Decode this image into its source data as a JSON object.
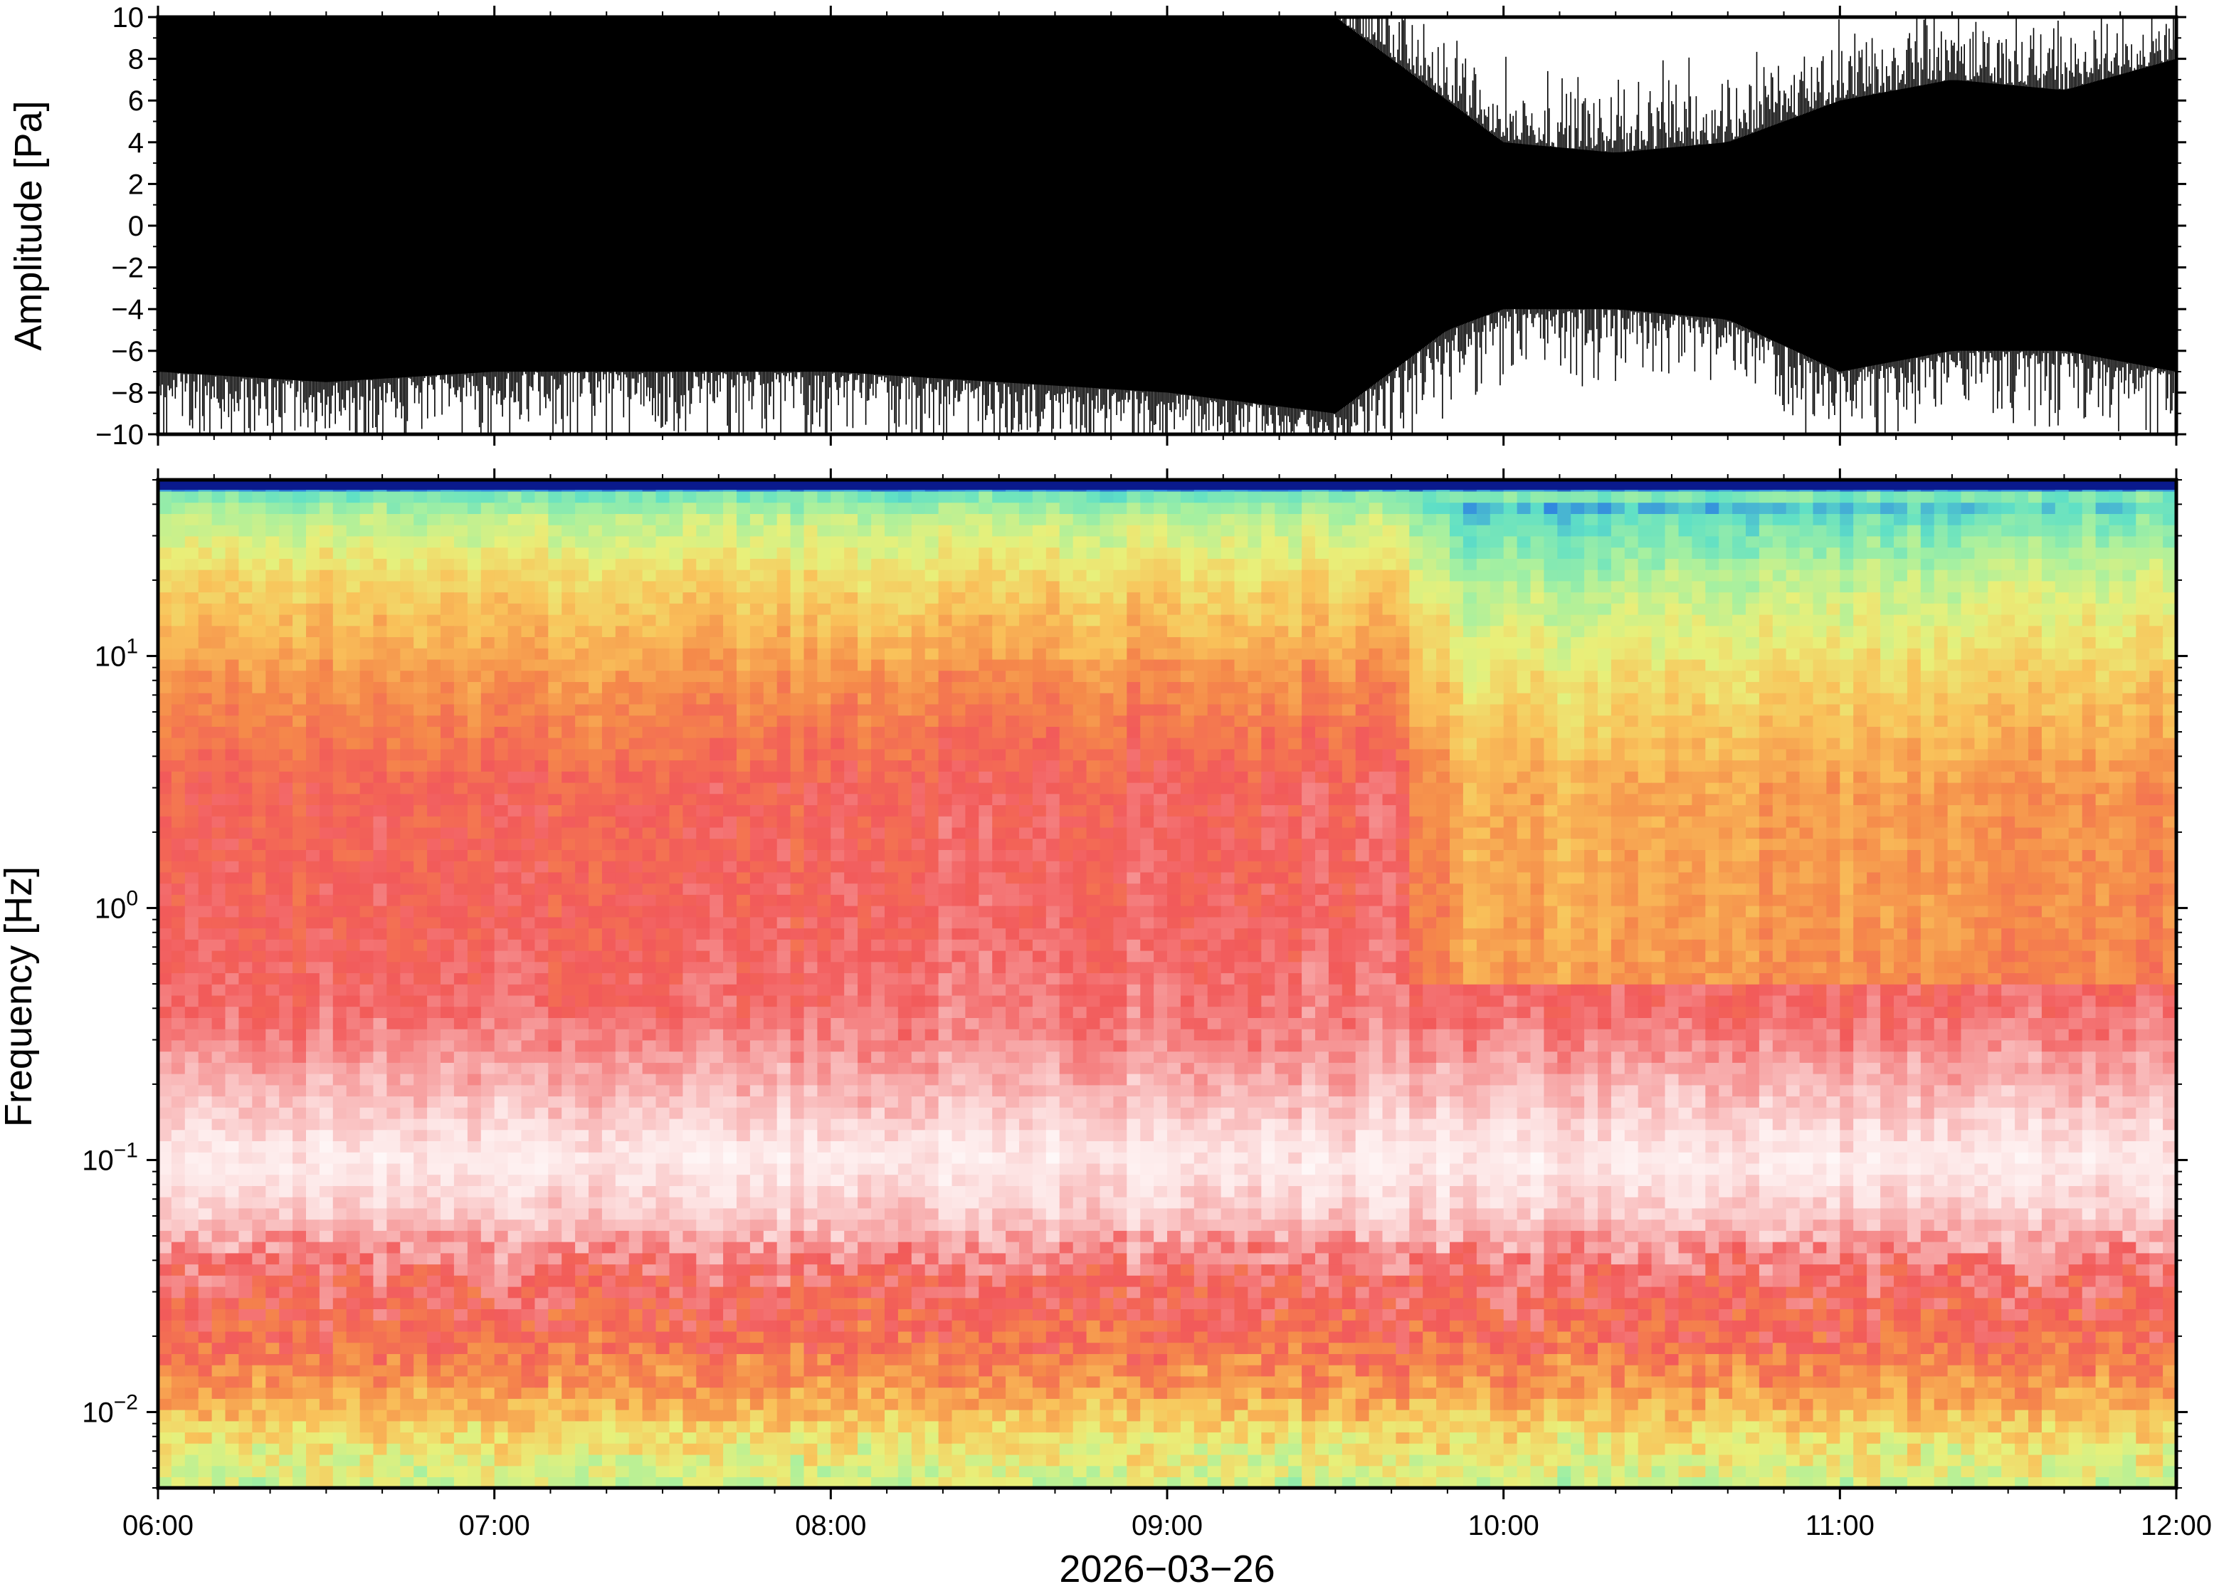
{
  "chart_data": [
    {
      "type": "line",
      "panel": "waveform",
      "ylabel": "Amplitude [Pa]",
      "ylim": [
        -10,
        10
      ],
      "yticks": [
        10,
        8,
        6,
        4,
        2,
        0,
        -2,
        -4,
        -6,
        -8,
        -10
      ],
      "ytick_labels": [
        "10",
        "8",
        "6",
        "4",
        "2",
        "0",
        "−2",
        "−4",
        "−6",
        "−8",
        "−10"
      ],
      "xlim": [
        "06:00",
        "12:00"
      ],
      "series": [
        {
          "color": "#000000",
          "x": [
            "06:00",
            "06:30",
            "07:00",
            "07:30",
            "08:00",
            "08:30",
            "09:00",
            "09:30",
            "09:40",
            "09:50",
            "10:00",
            "10:20",
            "10:40",
            "11:00",
            "11:20",
            "11:40",
            "12:00"
          ],
          "upper_envelope": [
            10,
            10,
            10,
            10,
            10,
            10,
            10,
            10,
            8,
            6,
            4,
            3.5,
            4,
            6,
            7,
            6.5,
            8
          ],
          "lower_envelope": [
            -7,
            -7.5,
            -7,
            -7,
            -7,
            -7.5,
            -8,
            -9,
            -7,
            -5,
            -4,
            -4,
            -4.5,
            -7,
            -6,
            -6,
            -7
          ]
        }
      ]
    },
    {
      "type": "heatmap",
      "panel": "spectrogram",
      "ylabel": "Frequency [Hz]",
      "xlabel": "2026−03−26",
      "yscale": "log",
      "ylim": [
        0.005,
        50
      ],
      "yticks": [
        10,
        1,
        0.1,
        0.01
      ],
      "ytick_bases": [
        "10",
        "10",
        "10",
        "10"
      ],
      "ytick_exponents": [
        "1",
        "0",
        "−1",
        "−2"
      ],
      "xticks": [
        "06:00",
        "07:00",
        "08:00",
        "09:00",
        "10:00",
        "11:00",
        "12:00"
      ],
      "colormap": [
        "#0a1a8c",
        "#2f86e0",
        "#5fe0c6",
        "#a6f0a0",
        "#e8f07a",
        "#f9c25a",
        "#f58a4a",
        "#f25a5a",
        "#f7a6a6",
        "#fde6e6",
        "#ffffff"
      ],
      "bands": [
        {
          "freq_range": [
            35,
            50
          ],
          "level": "blue/cyan (low)"
        },
        {
          "freq_range": [
            10,
            35
          ],
          "level": "yellow-green"
        },
        {
          "freq_range": [
            0.3,
            10
          ],
          "level": "red (high)"
        },
        {
          "freq_range": [
            0.05,
            0.3
          ],
          "level": "pink/white (highest)"
        },
        {
          "freq_range": [
            0.015,
            0.05
          ],
          "level": "red"
        },
        {
          "freq_range": [
            0.005,
            0.015
          ],
          "level": "orange/yellow/green"
        }
      ],
      "event": {
        "time_range": [
          "09:40",
          "12:00"
        ],
        "freq_range": [
          0.5,
          40
        ],
        "description": "lower power (yellow) above ~0.5 Hz after 09:40"
      }
    }
  ]
}
